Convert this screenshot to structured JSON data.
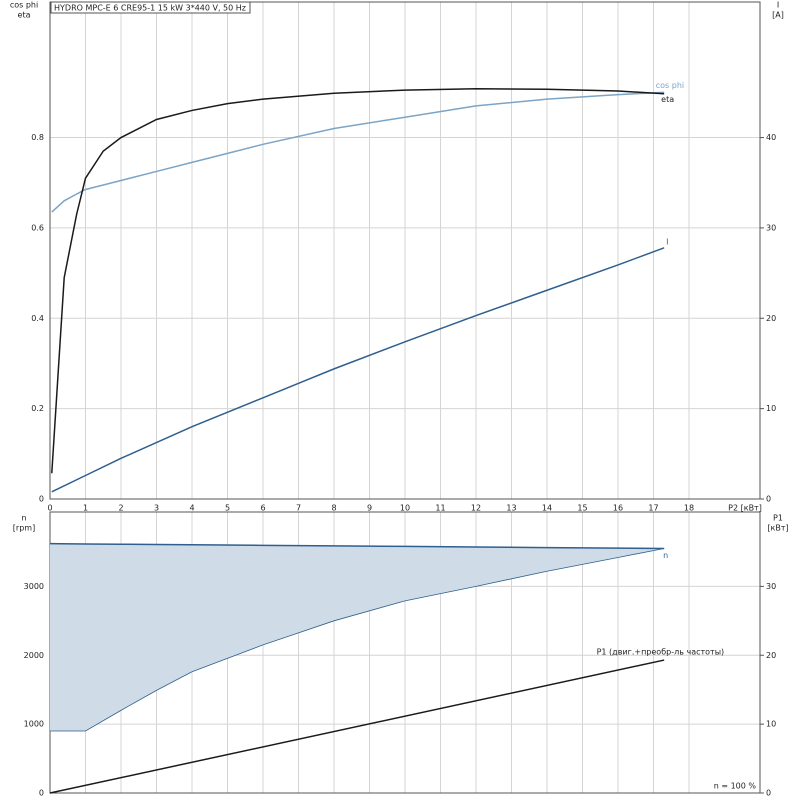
{
  "chart_data": [
    {
      "type": "line",
      "title": "HYDRO MPC-E 6 CRE95-1   15 kW   3*440 V, 50 Hz",
      "y_label": [
        "cos phi",
        "eta"
      ],
      "y2_label": [
        "I",
        "[A]"
      ],
      "x_label": "P2 [кВт]",
      "xlim": [
        0,
        20
      ],
      "xticks": [
        0,
        1,
        2,
        3,
        4,
        5,
        6,
        7,
        8,
        9,
        10,
        11,
        12,
        13,
        14,
        15,
        16,
        17,
        18
      ],
      "ylim": [
        0,
        1.1
      ],
      "yticks": [
        0,
        0.2,
        0.4,
        0.6,
        0.8
      ],
      "y2lim": [
        0,
        55
      ],
      "y2ticks": [
        0,
        10,
        20,
        30,
        40
      ],
      "grid": true,
      "series": [
        {
          "name": "cos phi",
          "color": "#7ba4c6",
          "x": [
            0.05,
            0.4,
            0.75,
            1,
            1.5,
            2,
            3,
            4,
            5,
            6,
            8,
            10,
            12,
            14,
            16,
            17.3
          ],
          "values": [
            0.635,
            0.66,
            0.675,
            0.685,
            0.695,
            0.705,
            0.725,
            0.745,
            0.765,
            0.785,
            0.82,
            0.845,
            0.87,
            0.885,
            0.895,
            0.9
          ]
        },
        {
          "name": "eta",
          "color": "#1a1a1a",
          "x": [
            0.05,
            0.4,
            0.75,
            1,
            1.5,
            2,
            3,
            4,
            5,
            6,
            8,
            10,
            12,
            14,
            16,
            17.3
          ],
          "values": [
            0.057,
            0.49,
            0.63,
            0.71,
            0.77,
            0.8,
            0.84,
            0.86,
            0.875,
            0.885,
            0.898,
            0.905,
            0.908,
            0.907,
            0.903,
            0.897
          ]
        },
        {
          "name": "I",
          "color": "#2f5f8f",
          "axis": "y2",
          "x": [
            0.05,
            1,
            2,
            4,
            6,
            8,
            10,
            12,
            14,
            16,
            17.3
          ],
          "values": [
            0.8,
            2.6,
            4.5,
            8,
            11.2,
            14.4,
            17.4,
            20.3,
            23.1,
            25.9,
            27.8
          ]
        }
      ]
    },
    {
      "type": "line",
      "y_label": [
        "n",
        "[rpm]"
      ],
      "y2_label": [
        "P1",
        "[кВт]"
      ],
      "annotation": "n = 100 %",
      "xlim": [
        0,
        20
      ],
      "xticks": [
        0,
        1,
        2,
        3,
        4,
        5,
        6,
        7,
        8,
        9,
        10,
        11,
        12,
        13,
        14,
        15,
        16,
        17,
        18
      ],
      "ylim": [
        0,
        4080
      ],
      "yticks": [
        0,
        1000,
        2000,
        3000
      ],
      "y2lim": [
        0,
        40.8
      ],
      "y2ticks": [
        0,
        10,
        20,
        30
      ],
      "grid": true,
      "series": [
        {
          "name": "n",
          "color": "#2f5f8f",
          "fill": "#cfdbe7",
          "x": [
            0,
            1,
            2,
            3,
            4,
            6,
            8,
            10,
            12,
            14,
            16,
            17.3
          ],
          "values": [
            3620,
            3616,
            3612,
            3608,
            3604,
            3596,
            3588,
            3580,
            3571,
            3563,
            3555,
            3550
          ],
          "lower": [
            900,
            900,
            1200,
            1490,
            1760,
            2150,
            2500,
            2790,
            3000,
            3220,
            3420,
            3550
          ]
        },
        {
          "name": "P1 (двиг.+преобр-ль частоты)",
          "color": "#1a1a1a",
          "axis": "y2",
          "x": [
            0,
            17.3
          ],
          "values": [
            0,
            19.3
          ]
        }
      ]
    }
  ]
}
